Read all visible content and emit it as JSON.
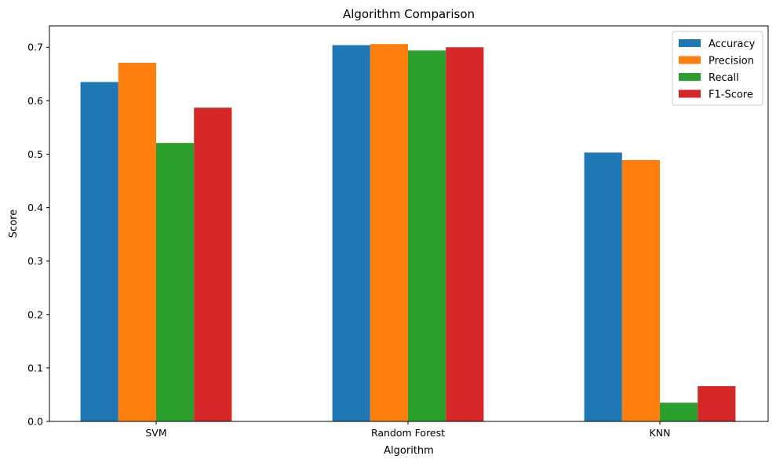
{
  "chart_data": {
    "type": "bar",
    "title": "Algorithm Comparison",
    "xlabel": "Algorithm",
    "ylabel": "Score",
    "categories": [
      "SVM",
      "Random Forest",
      "KNN"
    ],
    "series": [
      {
        "name": "Accuracy",
        "color": "#1f77b4",
        "values": [
          0.635,
          0.704,
          0.503
        ]
      },
      {
        "name": "Precision",
        "color": "#ff7f0e",
        "values": [
          0.671,
          0.706,
          0.489
        ]
      },
      {
        "name": "Recall",
        "color": "#2ca02c",
        "values": [
          0.521,
          0.694,
          0.035
        ]
      },
      {
        "name": "F1-Score",
        "color": "#d62728",
        "values": [
          0.587,
          0.7,
          0.066
        ]
      }
    ],
    "ylim": [
      0,
      0.74
    ],
    "yticks": [
      "0.0",
      "0.1",
      "0.2",
      "0.3",
      "0.4",
      "0.5",
      "0.6",
      "0.7"
    ],
    "grid": false,
    "legend_position": "top-right"
  }
}
